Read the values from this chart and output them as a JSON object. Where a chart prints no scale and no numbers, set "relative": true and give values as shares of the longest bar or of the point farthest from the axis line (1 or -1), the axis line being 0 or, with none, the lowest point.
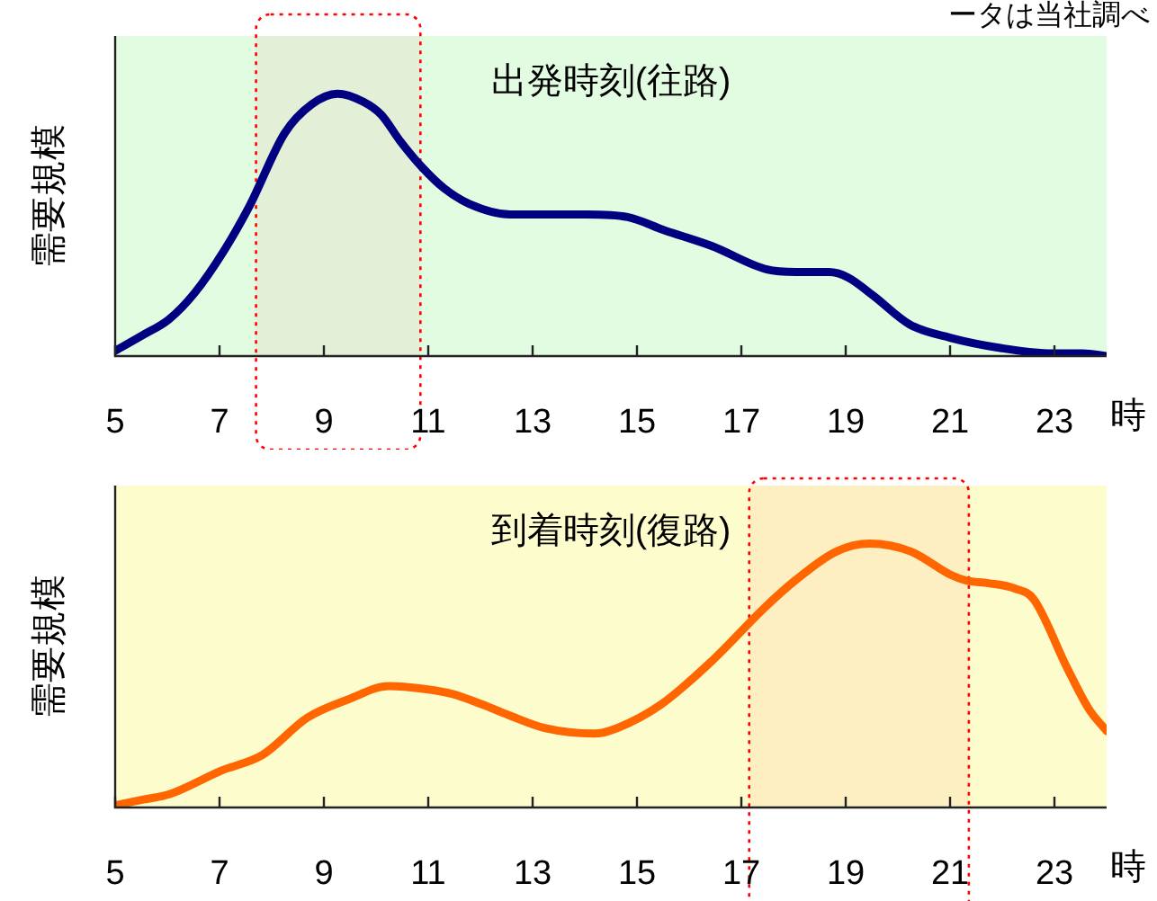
{
  "chart_data": [
    {
      "type": "line",
      "title": "出発時刻(往路)",
      "ylabel": "需要規模",
      "xlabel": "時",
      "annotations": [
        "ータは当社調べ"
      ],
      "relative": true,
      "xlim": [
        5,
        24
      ],
      "xticks": [
        5,
        7,
        9,
        11,
        13,
        15,
        17,
        19,
        21,
        23
      ],
      "grid": false,
      "legend": false,
      "marker": "none",
      "line_style": "solid",
      "bands": [
        {
          "axis": "x",
          "from": 7.7,
          "to": 10.85,
          "color": "#ff0000"
        }
      ],
      "series": [
        {
          "color": "#000080",
          "x": [
            5,
            5.53,
            6.03,
            6.52,
            7.08,
            7.57,
            8.25,
            8.77,
            9.26,
            9.75,
            10.1,
            10.46,
            10.88,
            11.3,
            11.79,
            12.57,
            14.04,
            14.82,
            15.52,
            16.43,
            17.49,
            18.05,
            18.68,
            19.04,
            19.53,
            20.23,
            21,
            21.99,
            22.97,
            23.54,
            24
          ],
          "values": [
            0.02,
            0.08,
            0.14,
            0.24,
            0.4,
            0.57,
            0.85,
            0.96,
            1,
            0.97,
            0.92,
            0.82,
            0.72,
            0.64,
            0.58,
            0.54,
            0.54,
            0.53,
            0.48,
            0.42,
            0.33,
            0.32,
            0.32,
            0.3,
            0.23,
            0.12,
            0.07,
            0.03,
            0.01,
            0.01,
            0
          ]
        }
      ]
    },
    {
      "type": "line",
      "title": "到着時刻(復路)",
      "ylabel": "需要規模",
      "xlabel": "時",
      "relative": true,
      "xlim": [
        5,
        24
      ],
      "xticks": [
        5,
        7,
        9,
        11,
        13,
        15,
        17,
        19,
        21,
        23
      ],
      "grid": false,
      "legend": false,
      "marker": "none",
      "line_style": "solid",
      "bands": [
        {
          "axis": "x",
          "from": 17.15,
          "to": 21.36,
          "color": "#ff0000"
        }
      ],
      "series": [
        {
          "color": "#ff6600",
          "x": [
            5.04,
            5.54,
            6.04,
            7.04,
            7.83,
            8.68,
            9.47,
            10.25,
            10.9,
            11.47,
            12.04,
            12.54,
            13.25,
            14.18,
            14.61,
            15.46,
            16.46,
            17.46,
            18.03,
            18.82,
            19.46,
            20.25,
            21.03,
            21.31,
            21.74,
            22.24,
            22.6,
            23.24,
            23.67,
            24
          ],
          "values": [
            0.01,
            0.03,
            0.05,
            0.14,
            0.2,
            0.34,
            0.41,
            0.46,
            0.45,
            0.43,
            0.39,
            0.35,
            0.3,
            0.28,
            0.3,
            0.39,
            0.56,
            0.76,
            0.86,
            0.97,
            1,
            0.97,
            0.88,
            0.86,
            0.85,
            0.83,
            0.79,
            0.53,
            0.37,
            0.29
          ]
        }
      ]
    }
  ]
}
